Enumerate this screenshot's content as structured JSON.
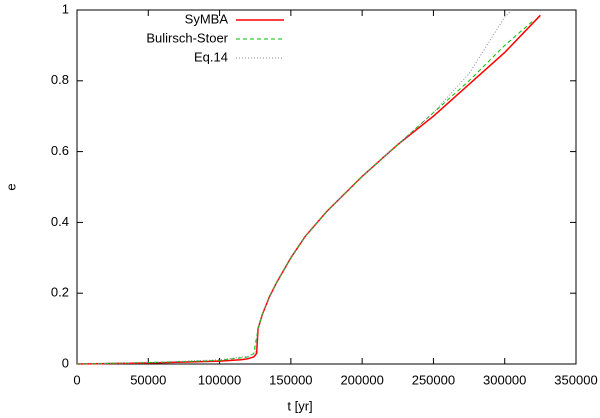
{
  "chart_data": {
    "type": "line",
    "xlabel": "t [yr]",
    "ylabel": "e",
    "xlim": [
      0,
      350000
    ],
    "xticks": [
      0,
      50000,
      100000,
      150000,
      200000,
      250000,
      300000,
      350000
    ],
    "ylim": [
      0,
      1
    ],
    "yticks": [
      0,
      0.2,
      0.4,
      0.6,
      0.8,
      1
    ],
    "legend": "top-right",
    "series": [
      {
        "name": "SyMBA",
        "color": "#ff0000",
        "style": "solid",
        "x": [
          0,
          50000,
          100000,
          115000,
          120000,
          124000,
          126000,
          127000,
          130000,
          135000,
          140000,
          150000,
          160000,
          175000,
          200000,
          225000,
          250000,
          275000,
          300000,
          325000
        ],
        "values": [
          0,
          0.003,
          0.008,
          0.012,
          0.015,
          0.02,
          0.03,
          0.1,
          0.14,
          0.19,
          0.23,
          0.3,
          0.36,
          0.43,
          0.53,
          0.62,
          0.7,
          0.79,
          0.88,
          0.985
        ]
      },
      {
        "name": "Bulirsch-Stoer",
        "color": "#00c000",
        "style": "dashed",
        "x": [
          0,
          50000,
          100000,
          120000,
          124000,
          127000,
          130000,
          135000,
          140000,
          150000,
          160000,
          175000,
          200000,
          225000,
          250000,
          275000,
          300000,
          320000
        ],
        "values": [
          0,
          0.004,
          0.01,
          0.02,
          0.03,
          0.1,
          0.14,
          0.19,
          0.23,
          0.3,
          0.36,
          0.43,
          0.53,
          0.62,
          0.71,
          0.8,
          0.9,
          0.97
        ]
      },
      {
        "name": "Eq.14",
        "color": "#8888aa",
        "style": "dotted",
        "x": [
          0,
          50000,
          100000,
          120000,
          125000,
          127000,
          130000,
          135000,
          140000,
          150000,
          160000,
          175000,
          200000,
          225000,
          250000,
          275000,
          300000,
          305000
        ],
        "values": [
          0,
          0.004,
          0.012,
          0.022,
          0.03,
          0.1,
          0.14,
          0.19,
          0.23,
          0.3,
          0.36,
          0.43,
          0.53,
          0.62,
          0.71,
          0.82,
          0.98,
          1
        ]
      }
    ]
  }
}
